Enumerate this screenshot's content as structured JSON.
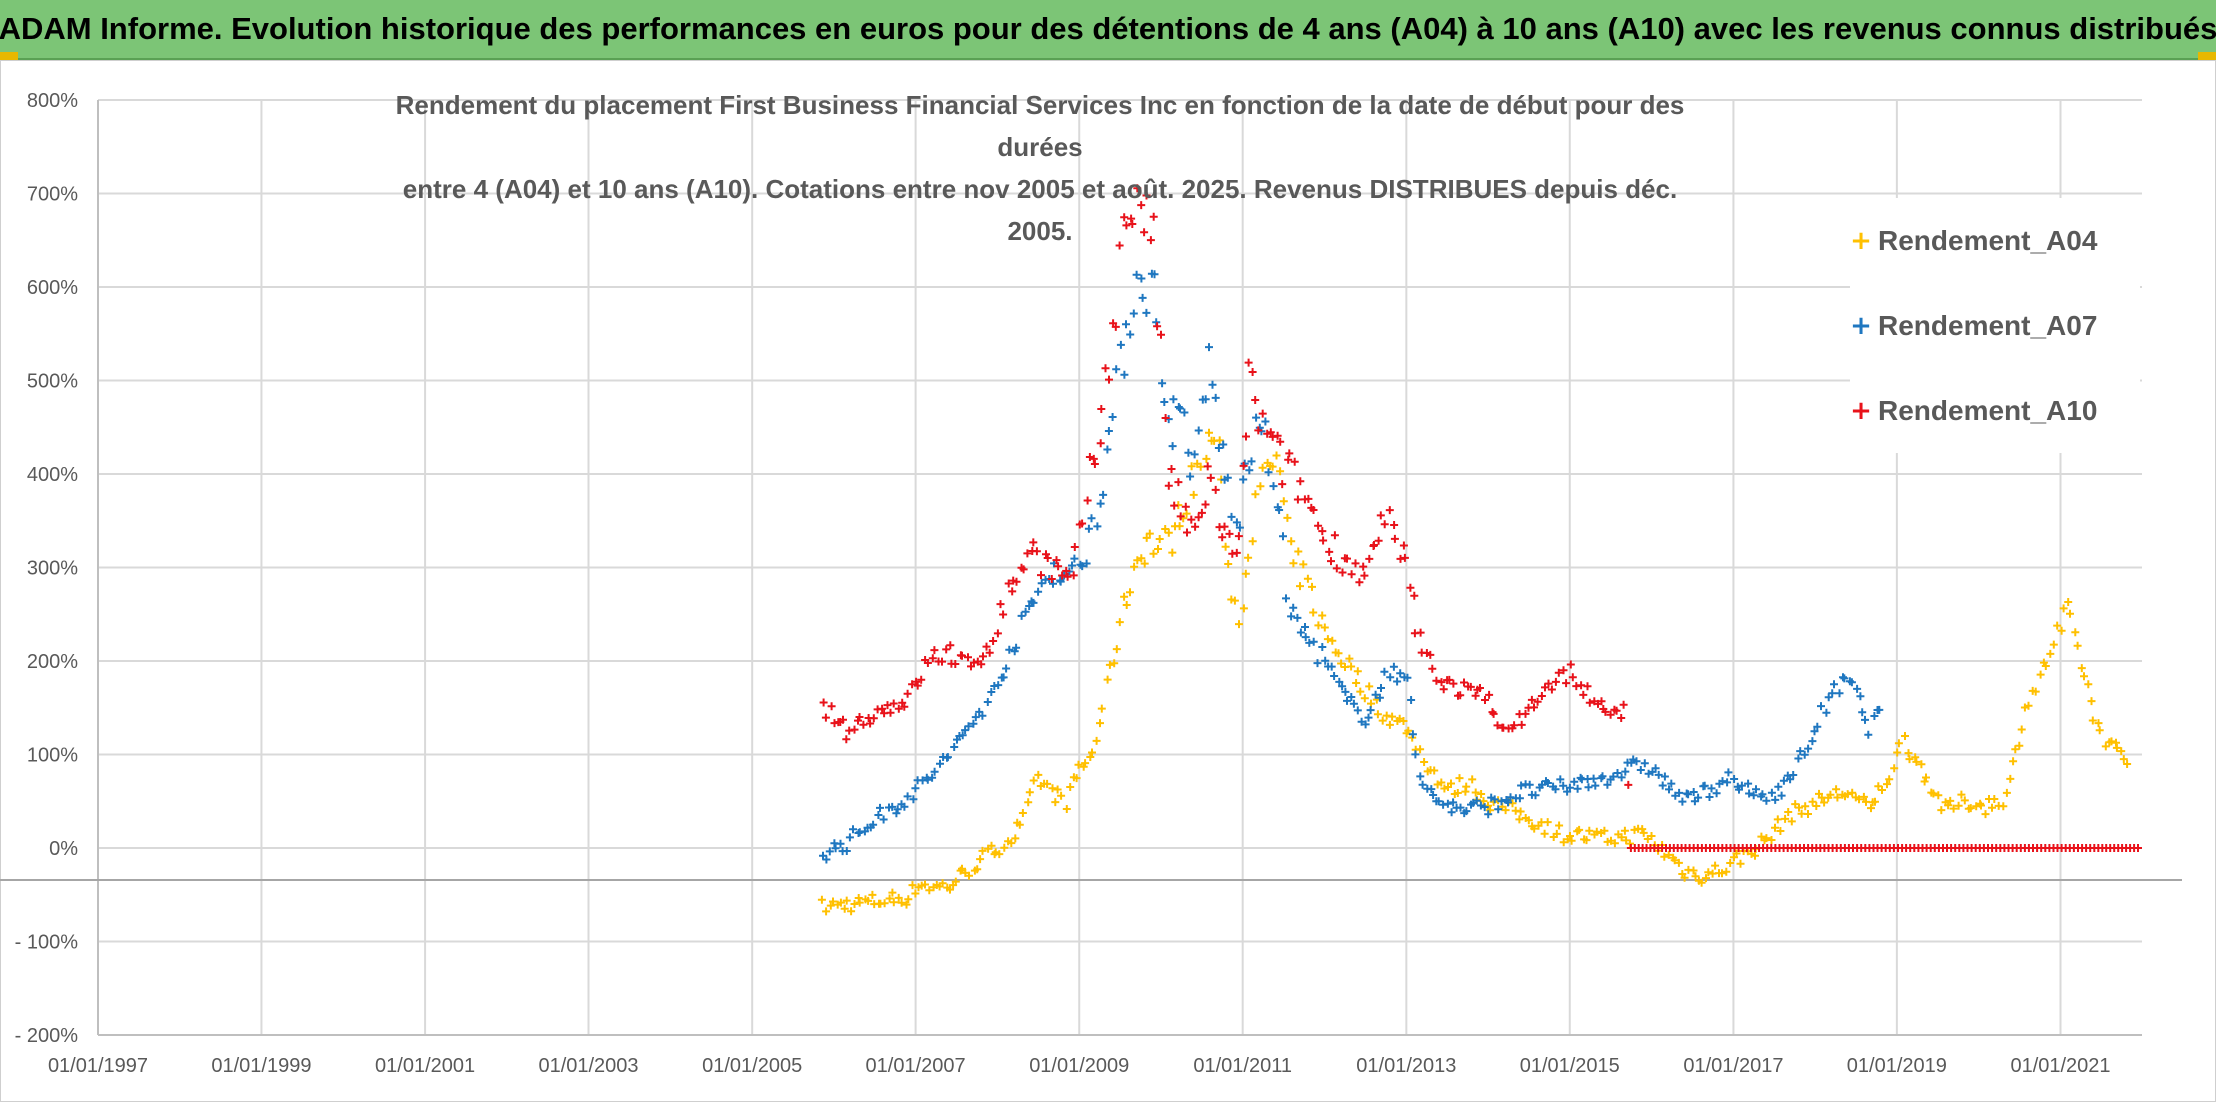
{
  "banner": {
    "title": "ADAM Informe. Evolution historique des performances en euros pour des détentions de 4 ans (A04) à 10 ans (A10) avec les revenus connus distribués"
  },
  "colors": {
    "banner_bg": "#7cc576",
    "A04": "#ffc000",
    "A07": "#1f77c0",
    "A10": "#e8121a",
    "grid": "#d9d9d9",
    "axis_text": "#595959"
  },
  "chart_data": {
    "type": "scatter",
    "title": "Rendement du placement First Business Financial Services Inc en fonction de la date de début pour des durées entre 4 (A04) et 10 ans (A10). Cotations entre nov 2005 et août. 2025. Revenus DISTRIBUES depuis déc. 2005.",
    "title_lines": [
      "Rendement du placement First Business Financial Services Inc en fonction de la date de début pour des durées",
      "entre 4 (A04) et 10 ans (A10). Cotations entre nov 2005 et août. 2025. Revenus DISTRIBUES depuis déc. 2005."
    ],
    "x_type": "date",
    "xlim": [
      "1997-01-01",
      "2021-12-31"
    ],
    "ylim": [
      -200,
      800
    ],
    "y_unit": "%",
    "x_ticks": [
      "01/01/1997",
      "01/01/1999",
      "01/01/2001",
      "01/01/2003",
      "01/01/2005",
      "01/01/2007",
      "01/01/2009",
      "01/01/2011",
      "01/01/2013",
      "01/01/2015",
      "01/01/2017",
      "01/01/2019",
      "01/01/2021"
    ],
    "y_ticks": [
      "800%",
      "700%",
      "600%",
      "500%",
      "400%",
      "300%",
      "200%",
      "100%",
      "0%",
      "- 100%",
      "- 200%"
    ],
    "grid": true,
    "legend_position": "right",
    "marker": "+",
    "series": [
      {
        "name": "Rendement_A04",
        "points": [
          [
            "2005-11-15",
            -63
          ],
          [
            "2006-03-01",
            -60
          ],
          [
            "2006-06-01",
            -58
          ],
          [
            "2006-09-01",
            -55
          ],
          [
            "2006-12-01",
            -52
          ],
          [
            "2007-01-15",
            -38
          ],
          [
            "2007-04-01",
            -42
          ],
          [
            "2007-06-01",
            -40
          ],
          [
            "2007-09-01",
            -22
          ],
          [
            "2007-12-01",
            -5
          ],
          [
            "2008-03-01",
            10
          ],
          [
            "2008-05-01",
            30
          ],
          [
            "2008-07-01",
            75
          ],
          [
            "2008-09-01",
            60
          ],
          [
            "2008-11-01",
            50
          ],
          [
            "2009-01-01",
            85
          ],
          [
            "2009-03-01",
            100
          ],
          [
            "2009-05-01",
            170
          ],
          [
            "2009-07-01",
            240
          ],
          [
            "2009-09-01",
            300
          ],
          [
            "2009-11-01",
            330
          ],
          [
            "2010-01-01",
            320
          ],
          [
            "2010-03-01",
            340
          ],
          [
            "2010-05-01",
            380
          ],
          [
            "2010-07-01",
            410
          ],
          [
            "2010-09-01",
            450
          ],
          [
            "2010-11-01",
            300
          ],
          [
            "2010-12-15",
            240
          ],
          [
            "2011-02-01",
            330
          ],
          [
            "2011-04-01",
            390
          ],
          [
            "2011-06-01",
            420
          ],
          [
            "2011-08-01",
            310
          ],
          [
            "2011-10-01",
            290
          ],
          [
            "2012-01-01",
            230
          ],
          [
            "2012-04-01",
            200
          ],
          [
            "2012-07-01",
            170
          ],
          [
            "2012-10-01",
            140
          ],
          [
            "2013-01-01",
            130
          ],
          [
            "2013-04-01",
            90
          ],
          [
            "2013-07-01",
            60
          ],
          [
            "2013-10-01",
            70
          ],
          [
            "2014-01-01",
            50
          ],
          [
            "2014-06-01",
            35
          ],
          [
            "2014-12-01",
            15
          ],
          [
            "2015-06-01",
            10
          ],
          [
            "2015-12-01",
            15
          ],
          [
            "2016-03-01",
            -5
          ],
          [
            "2016-06-01",
            -25
          ],
          [
            "2016-09-01",
            -30
          ],
          [
            "2016-12-01",
            -20
          ],
          [
            "2017-03-01",
            -5
          ],
          [
            "2017-06-01",
            10
          ],
          [
            "2017-09-01",
            35
          ],
          [
            "2017-12-01",
            45
          ],
          [
            "2018-03-01",
            55
          ],
          [
            "2018-06-01",
            60
          ],
          [
            "2018-09-01",
            40
          ],
          [
            "2018-12-01",
            80
          ],
          [
            "2019-02-01",
            115
          ],
          [
            "2019-05-01",
            80
          ],
          [
            "2019-08-01",
            40
          ],
          [
            "2019-11-01",
            50
          ],
          [
            "2020-02-01",
            45
          ],
          [
            "2020-05-01",
            55
          ],
          [
            "2020-08-01",
            150
          ],
          [
            "2020-10-01",
            180
          ],
          [
            "2020-12-01",
            220
          ],
          [
            "2021-02-01",
            250
          ],
          [
            "2021-04-01",
            200
          ],
          [
            "2021-06-01",
            140
          ],
          [
            "2021-08-01",
            110
          ],
          [
            "2021-10-01",
            100
          ],
          [
            "2021-11-15",
            90
          ]
        ]
      },
      {
        "name": "Rendement_A07",
        "points": [
          [
            "2005-11-15",
            -5
          ],
          [
            "2006-03-01",
            5
          ],
          [
            "2006-06-01",
            25
          ],
          [
            "2006-09-01",
            40
          ],
          [
            "2006-12-01",
            55
          ],
          [
            "2007-03-01",
            75
          ],
          [
            "2007-06-01",
            100
          ],
          [
            "2007-09-01",
            130
          ],
          [
            "2007-12-01",
            160
          ],
          [
            "2008-03-01",
            210
          ],
          [
            "2008-06-01",
            260
          ],
          [
            "2008-09-01",
            300
          ],
          [
            "2008-12-01",
            290
          ],
          [
            "2009-02-01",
            320
          ],
          [
            "2009-04-01",
            380
          ],
          [
            "2009-06-01",
            460
          ],
          [
            "2009-08-01",
            560
          ],
          [
            "2009-10-01",
            620
          ],
          [
            "2009-12-01",
            590
          ],
          [
            "2010-02-01",
            450
          ],
          [
            "2010-04-01",
            470
          ],
          [
            "2010-06-01",
            400
          ],
          [
            "2010-08-01",
            520
          ],
          [
            "2010-10-01",
            420
          ],
          [
            "2010-12-01",
            340
          ],
          [
            "2011-02-01",
            420
          ],
          [
            "2011-04-01",
            450
          ],
          [
            "2011-06-01",
            380
          ],
          [
            "2011-08-01",
            250
          ],
          [
            "2011-10-01",
            230
          ],
          [
            "2012-01-01",
            200
          ],
          [
            "2012-04-01",
            160
          ],
          [
            "2012-07-01",
            140
          ],
          [
            "2012-10-01",
            180
          ],
          [
            "2013-01-01",
            190
          ],
          [
            "2013-03-01",
            70
          ],
          [
            "2013-06-01",
            50
          ],
          [
            "2013-09-01",
            40
          ],
          [
            "2014-01-01",
            45
          ],
          [
            "2014-06-01",
            60
          ],
          [
            "2014-12-01",
            65
          ],
          [
            "2015-06-01",
            75
          ],
          [
            "2015-12-01",
            90
          ],
          [
            "2016-03-01",
            70
          ],
          [
            "2016-06-01",
            50
          ],
          [
            "2016-09-01",
            60
          ],
          [
            "2016-12-01",
            75
          ],
          [
            "2017-03-01",
            60
          ],
          [
            "2017-06-01",
            55
          ],
          [
            "2017-09-01",
            70
          ],
          [
            "2017-12-01",
            110
          ],
          [
            "2018-03-01",
            160
          ],
          [
            "2018-06-01",
            180
          ],
          [
            "2018-09-01",
            130
          ],
          [
            "2018-11-01",
            150
          ]
        ]
      },
      {
        "name": "Rendement_A10",
        "points": [
          [
            "2005-11-15",
            150
          ],
          [
            "2006-03-01",
            125
          ],
          [
            "2006-06-01",
            140
          ],
          [
            "2006-09-01",
            150
          ],
          [
            "2006-12-01",
            160
          ],
          [
            "2007-03-01",
            200
          ],
          [
            "2007-06-01",
            210
          ],
          [
            "2007-09-01",
            190
          ],
          [
            "2007-12-01",
            220
          ],
          [
            "2008-03-01",
            280
          ],
          [
            "2008-06-01",
            320
          ],
          [
            "2008-09-01",
            300
          ],
          [
            "2008-12-01",
            280
          ],
          [
            "2009-02-01",
            380
          ],
          [
            "2009-04-01",
            440
          ],
          [
            "2009-06-01",
            560
          ],
          [
            "2009-08-01",
            680
          ],
          [
            "2009-10-01",
            700
          ],
          [
            "2009-12-01",
            640
          ],
          [
            "2010-02-01",
            400
          ],
          [
            "2010-04-01",
            360
          ],
          [
            "2010-06-01",
            330
          ],
          [
            "2010-08-01",
            400
          ],
          [
            "2010-10-01",
            340
          ],
          [
            "2010-12-01",
            300
          ],
          [
            "2011-02-01",
            500
          ],
          [
            "2011-04-01",
            450
          ],
          [
            "2011-06-01",
            420
          ],
          [
            "2011-08-01",
            400
          ],
          [
            "2011-10-01",
            380
          ],
          [
            "2012-01-01",
            330
          ],
          [
            "2012-04-01",
            310
          ],
          [
            "2012-07-01",
            290
          ],
          [
            "2012-10-01",
            350
          ],
          [
            "2013-01-01",
            300
          ],
          [
            "2013-03-01",
            220
          ],
          [
            "2013-06-01",
            180
          ],
          [
            "2013-09-01",
            170
          ],
          [
            "2014-01-01",
            160
          ],
          [
            "2014-04-01",
            120
          ],
          [
            "2014-07-01",
            150
          ],
          [
            "2014-10-01",
            170
          ],
          [
            "2015-01-01",
            190
          ],
          [
            "2015-04-01",
            160
          ],
          [
            "2015-07-01",
            140
          ],
          [
            "2015-09-01",
            150
          ],
          [
            "2015-10-01",
            0
          ],
          [
            "2016-06-01",
            0
          ],
          [
            "2017-06-01",
            0
          ],
          [
            "2018-06-01",
            0
          ],
          [
            "2019-06-01",
            0
          ],
          [
            "2020-06-01",
            0
          ],
          [
            "2021-06-01",
            0
          ],
          [
            "2021-12-31",
            0
          ]
        ]
      }
    ]
  }
}
